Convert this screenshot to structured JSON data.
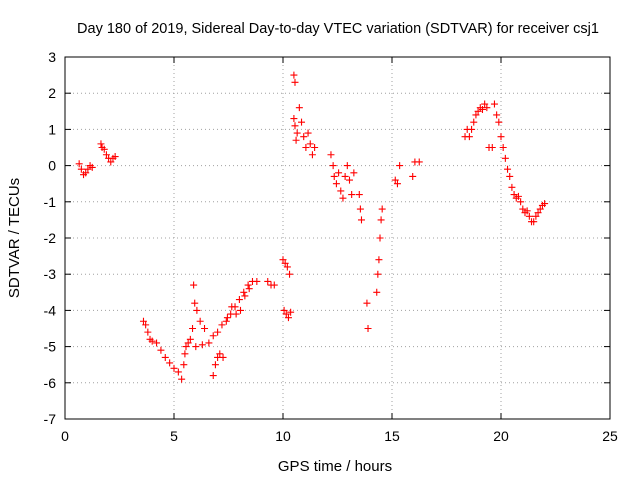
{
  "chart_data": {
    "type": "scatter",
    "title": "Day 180 of 2019, Sidereal Day-to-day VTEC variation (SDTVAR) for receiver csj1",
    "xlabel": "GPS time / hours",
    "ylabel": "SDTVAR / TECUs",
    "xlim": [
      0,
      25
    ],
    "ylim": [
      -7,
      3
    ],
    "xticks": [
      "0",
      "5",
      "10",
      "15",
      "20",
      "25"
    ],
    "yticks": [
      "-7",
      "-6",
      "-5",
      "-4",
      "-3",
      "-2",
      "-1",
      "0",
      "1",
      "2",
      "3"
    ],
    "grid": true,
    "marker": "+",
    "marker_color": "#ff0000",
    "series": [
      {
        "name": "SDTVAR",
        "points": [
          [
            0.65,
            0.05
          ],
          [
            0.75,
            -0.1
          ],
          [
            0.85,
            -0.25
          ],
          [
            0.95,
            -0.2
          ],
          [
            1.05,
            -0.1
          ],
          [
            1.15,
            0.0
          ],
          [
            1.25,
            -0.05
          ],
          [
            1.65,
            0.6
          ],
          [
            1.7,
            0.5
          ],
          [
            1.8,
            0.45
          ],
          [
            1.9,
            0.3
          ],
          [
            2.0,
            0.2
          ],
          [
            2.1,
            0.1
          ],
          [
            2.2,
            0.2
          ],
          [
            2.3,
            0.25
          ],
          [
            3.6,
            -4.3
          ],
          [
            3.7,
            -4.4
          ],
          [
            3.8,
            -4.6
          ],
          [
            3.9,
            -4.8
          ],
          [
            4.0,
            -4.85
          ],
          [
            4.2,
            -4.9
          ],
          [
            4.4,
            -5.1
          ],
          [
            4.6,
            -5.3
          ],
          [
            4.8,
            -5.45
          ],
          [
            5.0,
            -5.6
          ],
          [
            5.2,
            -5.7
          ],
          [
            5.35,
            -5.9
          ],
          [
            5.45,
            -5.5
          ],
          [
            5.5,
            -5.2
          ],
          [
            5.55,
            -5.0
          ],
          [
            5.65,
            -4.9
          ],
          [
            5.75,
            -4.8
          ],
          [
            5.85,
            -4.5
          ],
          [
            5.9,
            -3.3
          ],
          [
            5.95,
            -3.8
          ],
          [
            6.05,
            -4.0
          ],
          [
            6.2,
            -4.3
          ],
          [
            6.4,
            -4.5
          ],
          [
            6.0,
            -5.0
          ],
          [
            6.3,
            -4.95
          ],
          [
            6.6,
            -4.9
          ],
          [
            6.8,
            -4.7
          ],
          [
            7.0,
            -4.6
          ],
          [
            7.2,
            -4.4
          ],
          [
            7.4,
            -4.3
          ],
          [
            7.6,
            -4.1
          ],
          [
            7.8,
            -3.9
          ],
          [
            8.0,
            -3.7
          ],
          [
            8.2,
            -3.5
          ],
          [
            8.4,
            -3.3
          ],
          [
            8.6,
            -3.2
          ],
          [
            8.8,
            -3.2
          ],
          [
            6.8,
            -5.8
          ],
          [
            6.9,
            -5.5
          ],
          [
            7.0,
            -5.3
          ],
          [
            7.1,
            -5.2
          ],
          [
            7.25,
            -5.3
          ],
          [
            7.45,
            -4.2
          ],
          [
            7.65,
            -3.9
          ],
          [
            7.85,
            -4.1
          ],
          [
            8.05,
            -4.0
          ],
          [
            8.25,
            -3.6
          ],
          [
            8.45,
            -3.4
          ],
          [
            9.3,
            -3.2
          ],
          [
            9.45,
            -3.3
          ],
          [
            9.6,
            -3.3
          ],
          [
            10.0,
            -2.6
          ],
          [
            10.1,
            -2.7
          ],
          [
            10.2,
            -2.8
          ],
          [
            10.3,
            -3.0
          ],
          [
            10.05,
            -4.0
          ],
          [
            10.15,
            -4.1
          ],
          [
            10.25,
            -4.2
          ],
          [
            10.35,
            -4.05
          ],
          [
            10.5,
            2.5
          ],
          [
            10.55,
            2.3
          ],
          [
            10.5,
            1.3
          ],
          [
            10.55,
            1.1
          ],
          [
            10.6,
            0.7
          ],
          [
            10.65,
            0.9
          ],
          [
            10.75,
            1.6
          ],
          [
            10.85,
            1.2
          ],
          [
            10.95,
            0.8
          ],
          [
            11.05,
            0.5
          ],
          [
            11.15,
            0.9
          ],
          [
            11.25,
            0.6
          ],
          [
            11.35,
            0.3
          ],
          [
            11.45,
            0.5
          ],
          [
            12.2,
            0.3
          ],
          [
            12.3,
            0.0
          ],
          [
            12.35,
            -0.3
          ],
          [
            12.45,
            -0.5
          ],
          [
            12.55,
            -0.2
          ],
          [
            12.65,
            -0.7
          ],
          [
            12.75,
            -0.9
          ],
          [
            12.85,
            -0.3
          ],
          [
            12.95,
            0.0
          ],
          [
            13.05,
            -0.4
          ],
          [
            13.15,
            -0.8
          ],
          [
            13.25,
            -0.2
          ],
          [
            13.5,
            -0.8
          ],
          [
            13.55,
            -1.2
          ],
          [
            13.6,
            -1.5
          ],
          [
            13.85,
            -3.8
          ],
          [
            13.9,
            -4.5
          ],
          [
            14.3,
            -3.5
          ],
          [
            14.35,
            -3.0
          ],
          [
            14.4,
            -2.6
          ],
          [
            14.45,
            -2.0
          ],
          [
            14.5,
            -1.5
          ],
          [
            14.55,
            -1.2
          ],
          [
            15.15,
            -0.4
          ],
          [
            15.25,
            -0.5
          ],
          [
            15.35,
            0.0
          ],
          [
            15.95,
            -0.3
          ],
          [
            16.05,
            0.1
          ],
          [
            16.25,
            0.1
          ],
          [
            18.35,
            0.8
          ],
          [
            18.45,
            1.0
          ],
          [
            18.55,
            0.8
          ],
          [
            18.65,
            1.0
          ],
          [
            18.75,
            1.2
          ],
          [
            18.85,
            1.4
          ],
          [
            18.95,
            1.5
          ],
          [
            19.05,
            1.6
          ],
          [
            19.15,
            1.55
          ],
          [
            19.25,
            1.7
          ],
          [
            19.35,
            1.6
          ],
          [
            19.45,
            0.5
          ],
          [
            19.6,
            0.5
          ],
          [
            19.7,
            1.7
          ],
          [
            19.8,
            1.4
          ],
          [
            19.9,
            1.2
          ],
          [
            20.0,
            0.8
          ],
          [
            20.1,
            0.5
          ],
          [
            20.2,
            0.2
          ],
          [
            20.3,
            -0.1
          ],
          [
            20.4,
            -0.3
          ],
          [
            20.5,
            -0.6
          ],
          [
            20.6,
            -0.8
          ],
          [
            20.7,
            -0.9
          ],
          [
            20.8,
            -0.85
          ],
          [
            20.9,
            -1.0
          ],
          [
            21.0,
            -1.2
          ],
          [
            21.1,
            -1.3
          ],
          [
            21.2,
            -1.25
          ],
          [
            21.3,
            -1.4
          ],
          [
            21.4,
            -1.55
          ],
          [
            21.5,
            -1.55
          ],
          [
            21.6,
            -1.4
          ],
          [
            21.7,
            -1.3
          ],
          [
            21.8,
            -1.2
          ],
          [
            21.9,
            -1.1
          ],
          [
            22.0,
            -1.05
          ]
        ]
      }
    ]
  }
}
